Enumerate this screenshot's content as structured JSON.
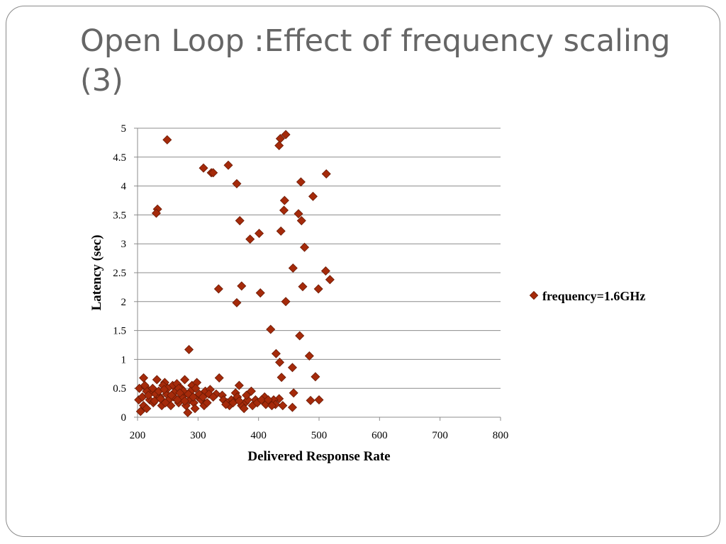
{
  "slide": {
    "title_line1": "Open Loop :Effect of frequency scaling",
    "title_line2": "(3)"
  },
  "chart_data": {
    "type": "scatter",
    "xlabel": "Delivered Response Rate",
    "ylabel": "Latency (sec)",
    "xlim": [
      200,
      800
    ],
    "ylim": [
      0,
      5
    ],
    "x_ticks": [
      "200",
      "300",
      "400",
      "500",
      "600",
      "700",
      "800"
    ],
    "y_ticks": [
      "0",
      "0.5",
      "1",
      "1.5",
      "2",
      "2.5",
      "3",
      "3.5",
      "4",
      "4.5",
      "5"
    ],
    "grid": "horizontal",
    "legend_position": "right",
    "marker_color": "#a52a0a",
    "series": [
      {
        "name": "frequency=1.6GHz",
        "points": [
          [
            249,
            4.8
          ],
          [
            233,
            3.6
          ],
          [
            231,
            3.53
          ],
          [
            285,
            1.17
          ],
          [
            309,
            4.31
          ],
          [
            322,
            4.23
          ],
          [
            325,
            4.23
          ],
          [
            350,
            4.36
          ],
          [
            364,
            4.04
          ],
          [
            369,
            3.4
          ],
          [
            386,
            3.08
          ],
          [
            401,
            3.18
          ],
          [
            334,
            2.22
          ],
          [
            372,
            2.27
          ],
          [
            364,
            1.98
          ],
          [
            403,
            2.15
          ],
          [
            420,
            1.52
          ],
          [
            429,
            1.1
          ],
          [
            435,
            0.95
          ],
          [
            436,
            4.82
          ],
          [
            434,
            4.7
          ],
          [
            445,
            4.89
          ],
          [
            470,
            4.07
          ],
          [
            490,
            3.82
          ],
          [
            443,
            3.75
          ],
          [
            442,
            3.58
          ],
          [
            437,
            3.22
          ],
          [
            466,
            3.52
          ],
          [
            471,
            3.4
          ],
          [
            476,
            2.94
          ],
          [
            457,
            2.58
          ],
          [
            473,
            2.26
          ],
          [
            445,
            2.0
          ],
          [
            468,
            1.41
          ],
          [
            484,
            1.06
          ],
          [
            456,
            0.86
          ],
          [
            438,
            0.69
          ],
          [
            494,
            0.7
          ],
          [
            512,
            4.21
          ],
          [
            511,
            2.53
          ],
          [
            518,
            2.38
          ],
          [
            499,
            2.22
          ],
          [
            458,
            0.42
          ],
          [
            486,
            0.29
          ],
          [
            500,
            0.3
          ],
          [
            456,
            0.17
          ],
          [
            440,
            0.2
          ],
          [
            434,
            0.32
          ],
          [
            335,
            0.68
          ],
          [
            368,
            0.55
          ],
          [
            278,
            0.65
          ],
          [
            210,
            0.68
          ],
          [
            232,
            0.65
          ],
          [
            203,
            0.5
          ],
          [
            213,
            0.52
          ],
          [
            222,
            0.45
          ],
          [
            245,
            0.6
          ],
          [
            258,
            0.55
          ],
          [
            265,
            0.58
          ],
          [
            272,
            0.5
          ],
          [
            290,
            0.55
          ],
          [
            298,
            0.6
          ],
          [
            312,
            0.45
          ],
          [
            320,
            0.48
          ],
          [
            330,
            0.4
          ],
          [
            340,
            0.38
          ],
          [
            355,
            0.3
          ],
          [
            362,
            0.42
          ],
          [
            378,
            0.25
          ],
          [
            388,
            0.45
          ],
          [
            395,
            0.3
          ],
          [
            410,
            0.35
          ],
          [
            418,
            0.25
          ],
          [
            425,
            0.3
          ],
          [
            205,
            0.1
          ],
          [
            210,
            0.2
          ],
          [
            215,
            0.15
          ],
          [
            220,
            0.3
          ],
          [
            226,
            0.25
          ],
          [
            230,
            0.4
          ],
          [
            237,
            0.35
          ],
          [
            240,
            0.2
          ],
          [
            248,
            0.4
          ],
          [
            252,
            0.3
          ],
          [
            255,
            0.2
          ],
          [
            260,
            0.35
          ],
          [
            263,
            0.45
          ],
          [
            268,
            0.25
          ],
          [
            274,
            0.35
          ],
          [
            280,
            0.2
          ],
          [
            283,
            0.08
          ],
          [
            286,
            0.3
          ],
          [
            288,
            0.45
          ],
          [
            293,
            0.25
          ],
          [
            295,
            0.15
          ],
          [
            300,
            0.35
          ],
          [
            305,
            0.3
          ],
          [
            310,
            0.2
          ],
          [
            315,
            0.25
          ],
          [
            318,
            0.4
          ],
          [
            325,
            0.35
          ],
          [
            342,
            0.3
          ],
          [
            348,
            0.25
          ],
          [
            352,
            0.2
          ],
          [
            358,
            0.25
          ],
          [
            365,
            0.35
          ],
          [
            372,
            0.2
          ],
          [
            376,
            0.15
          ],
          [
            382,
            0.3
          ],
          [
            390,
            0.2
          ],
          [
            398,
            0.25
          ],
          [
            405,
            0.3
          ],
          [
            412,
            0.22
          ],
          [
            215,
            0.45
          ],
          [
            225,
            0.5
          ],
          [
            235,
            0.45
          ],
          [
            242,
            0.55
          ],
          [
            250,
            0.5
          ],
          [
            268,
            0.5
          ],
          [
            276,
            0.45
          ],
          [
            284,
            0.4
          ],
          [
            302,
            0.4
          ],
          [
            308,
            0.35
          ],
          [
            202,
            0.3
          ],
          [
            208,
            0.35
          ],
          [
            218,
            0.38
          ],
          [
            228,
            0.28
          ],
          [
            238,
            0.32
          ],
          [
            246,
            0.25
          ],
          [
            256,
            0.38
          ],
          [
            266,
            0.3
          ],
          [
            278,
            0.28
          ],
          [
            292,
            0.35
          ],
          [
            212,
            0.55
          ],
          [
            244,
            0.48
          ],
          [
            270,
            0.42
          ],
          [
            296,
            0.5
          ],
          [
            380,
            0.38
          ],
          [
            428,
            0.22
          ],
          [
            422,
            0.2
          ],
          [
            416,
            0.3
          ],
          [
            368,
            0.28
          ],
          [
            346,
            0.22
          ]
        ]
      }
    ]
  }
}
